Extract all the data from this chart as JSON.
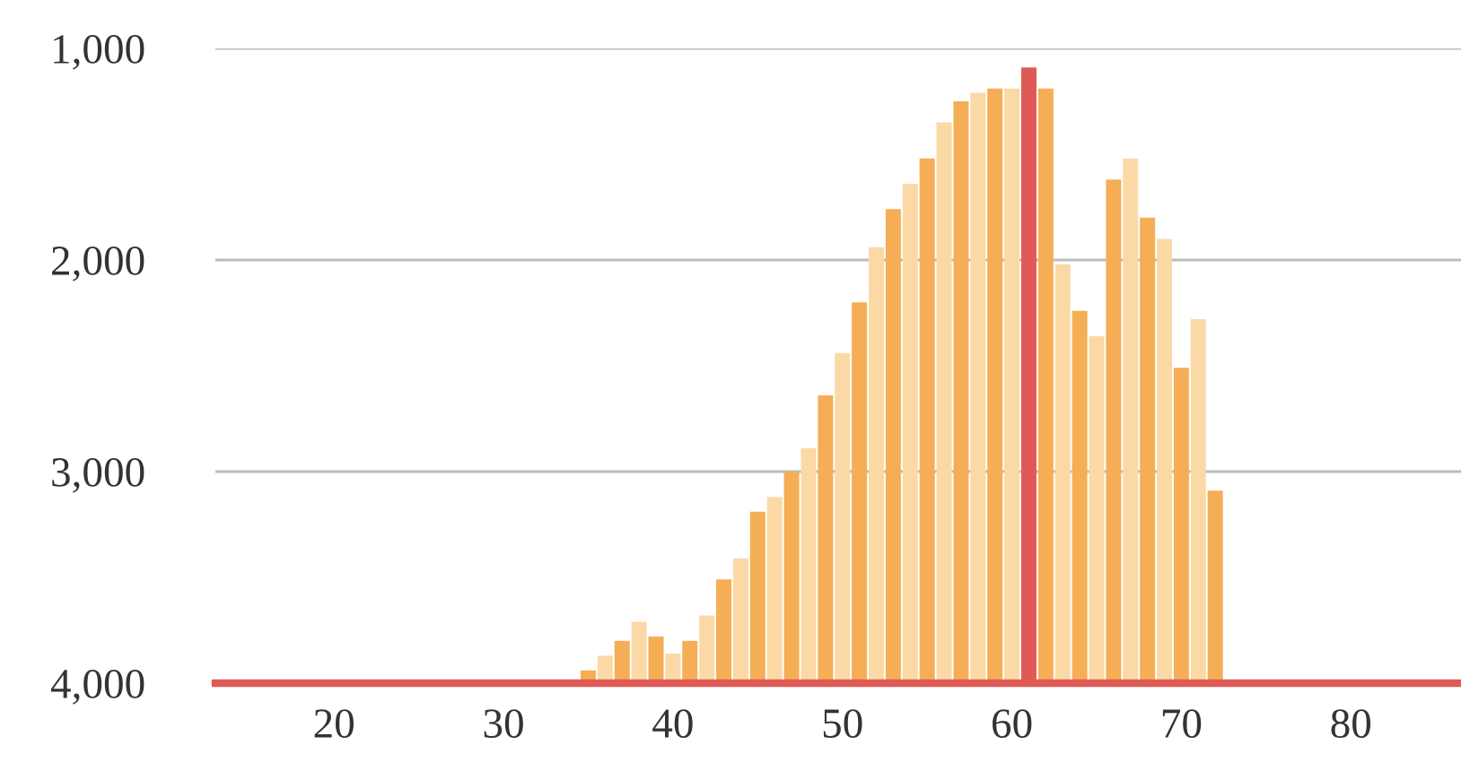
{
  "chart_data": {
    "type": "bar",
    "x": [
      35,
      36,
      37,
      38,
      39,
      40,
      41,
      42,
      43,
      44,
      45,
      46,
      47,
      48,
      49,
      50,
      51,
      52,
      53,
      54,
      55,
      56,
      57,
      58,
      59,
      60,
      61,
      62,
      63,
      64,
      65,
      66,
      67,
      68,
      69,
      70,
      71,
      72
    ],
    "base": [
      4000,
      4000,
      4000,
      4000,
      4000,
      4000,
      4000,
      4000,
      4000,
      4000,
      4000,
      4000,
      4000,
      4000,
      4000,
      4000,
      4000,
      4000,
      4000,
      4000,
      4000,
      4000,
      4000,
      4000,
      4000,
      4000,
      4000,
      4000,
      4000,
      4000,
      4000,
      4000,
      4000,
      4000,
      4000,
      4000,
      4000,
      4000
    ],
    "values": [
      -60,
      -130,
      -200,
      -290,
      -220,
      -140,
      -200,
      -320,
      -490,
      -590,
      -810,
      -880,
      -1000,
      -1110,
      -1360,
      -1560,
      -1800,
      -2060,
      -2240,
      -2360,
      -2480,
      -2650,
      -2750,
      -2790,
      -2810,
      -2810,
      -2910,
      -2810,
      -1980,
      -1760,
      -1640,
      -2380,
      -2480,
      -2200,
      -2100,
      -1490,
      -1720,
      -910
    ],
    "colors": [
      "#f5ae55",
      "#fbd9a7",
      "#f5ae55",
      "#fbd9a7",
      "#f5ae55",
      "#fbd9a7",
      "#f5ae55",
      "#fbd9a7",
      "#f5ae55",
      "#fbd9a7",
      "#f5ae55",
      "#fbd9a7",
      "#f5ae55",
      "#fbd9a7",
      "#f5ae55",
      "#fbd9a7",
      "#f5ae55",
      "#fbd9a7",
      "#f5ae55",
      "#fbd9a7",
      "#f5ae55",
      "#fbd9a7",
      "#f5ae55",
      "#fbd9a7",
      "#f5ae55",
      "#fbd9a7",
      "#e05a55",
      "#f5ae55",
      "#fbd9a7",
      "#f5ae55",
      "#fbd9a7",
      "#f5ae55",
      "#fbd9a7",
      "#f5ae55",
      "#fbd9a7",
      "#f5ae55",
      "#fbd9a7",
      "#f5ae55"
    ],
    "xlim": [
      13,
      86.5
    ],
    "ylim": [
      4000,
      1000
    ],
    "xticks": [
      20,
      30,
      40,
      50,
      60,
      70,
      80
    ],
    "yticks": [
      {
        "value": 1000,
        "label": "1,000"
      },
      {
        "value": 2000,
        "label": "2,000"
      },
      {
        "value": 3000,
        "label": "3,000"
      },
      {
        "value": 4000,
        "label": "4,000"
      }
    ],
    "grid": "y"
  }
}
